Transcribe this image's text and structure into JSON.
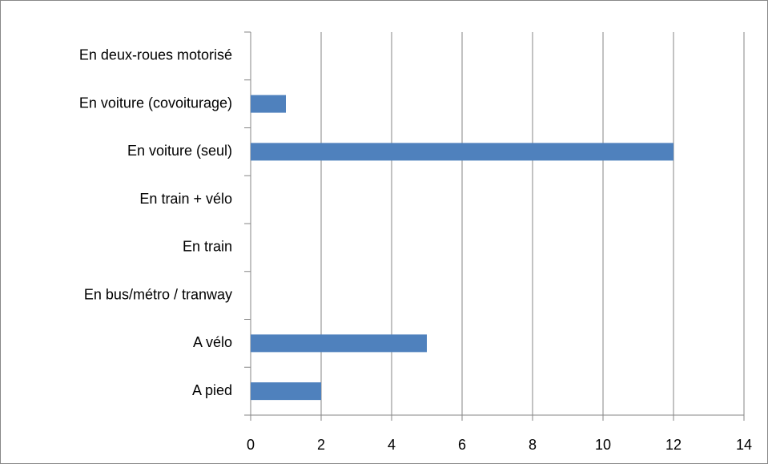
{
  "chart_data": {
    "type": "hbar",
    "categories": [
      "A pied",
      "A vélo",
      "En bus/métro / tranway",
      "En train",
      "En train + vélo",
      "En voiture (seul)",
      "En voiture (covoiturage)",
      "En deux-roues motorisé"
    ],
    "values": [
      2,
      5,
      0,
      0,
      0,
      12,
      1,
      0
    ],
    "color": "#4f81bd",
    "xlim": [
      0,
      14
    ],
    "xticks": [
      0,
      2,
      4,
      6,
      8,
      10,
      12,
      14
    ],
    "grid": true
  }
}
